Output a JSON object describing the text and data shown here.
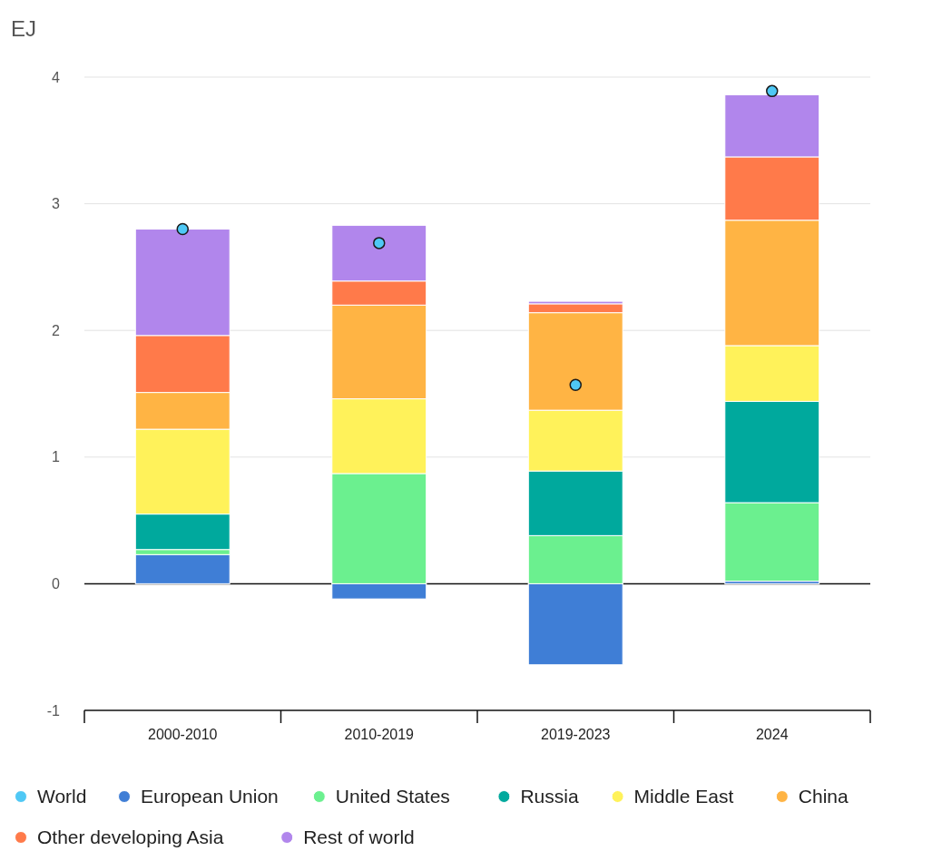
{
  "chart_data": {
    "type": "bar",
    "stacked": true,
    "ylabel": "EJ",
    "categories": [
      "2000-2010",
      "2010-2019",
      "2019-2023",
      "2024"
    ],
    "series": [
      {
        "name": "World",
        "type": "scatter",
        "color": "#4fc8f5",
        "values": [
          2.8,
          2.69,
          1.57,
          3.89
        ]
      },
      {
        "name": "European Union",
        "color": "#3f7ed6",
        "values": [
          0.23,
          -0.12,
          -0.64,
          0.02
        ]
      },
      {
        "name": "United States",
        "color": "#6bf08f",
        "values": [
          0.04,
          0.87,
          0.38,
          0.62
        ]
      },
      {
        "name": "Russia",
        "color": "#00a99d",
        "values": [
          0.28,
          0,
          0.51,
          0.8
        ]
      },
      {
        "name": "Middle East",
        "color": "#fff25a",
        "values": [
          0.67,
          0.59,
          0.48,
          0.44
        ]
      },
      {
        "name": "China",
        "color": "#ffb444",
        "values": [
          0.29,
          0.74,
          0.77,
          0.99
        ]
      },
      {
        "name": "Other developing Asia",
        "color": "#ff7a4a",
        "values": [
          0.45,
          0.19,
          0.07,
          0.5
        ]
      },
      {
        "name": "Rest of world",
        "color": "#b186ec",
        "values": [
          0.84,
          0.44,
          0.02,
          0.49
        ]
      }
    ],
    "ylim": [
      -1,
      4
    ],
    "yticks": [
      -1,
      0,
      1,
      2,
      3,
      4
    ],
    "grid": "y",
    "legend": "bottom",
    "marker": "circle"
  }
}
